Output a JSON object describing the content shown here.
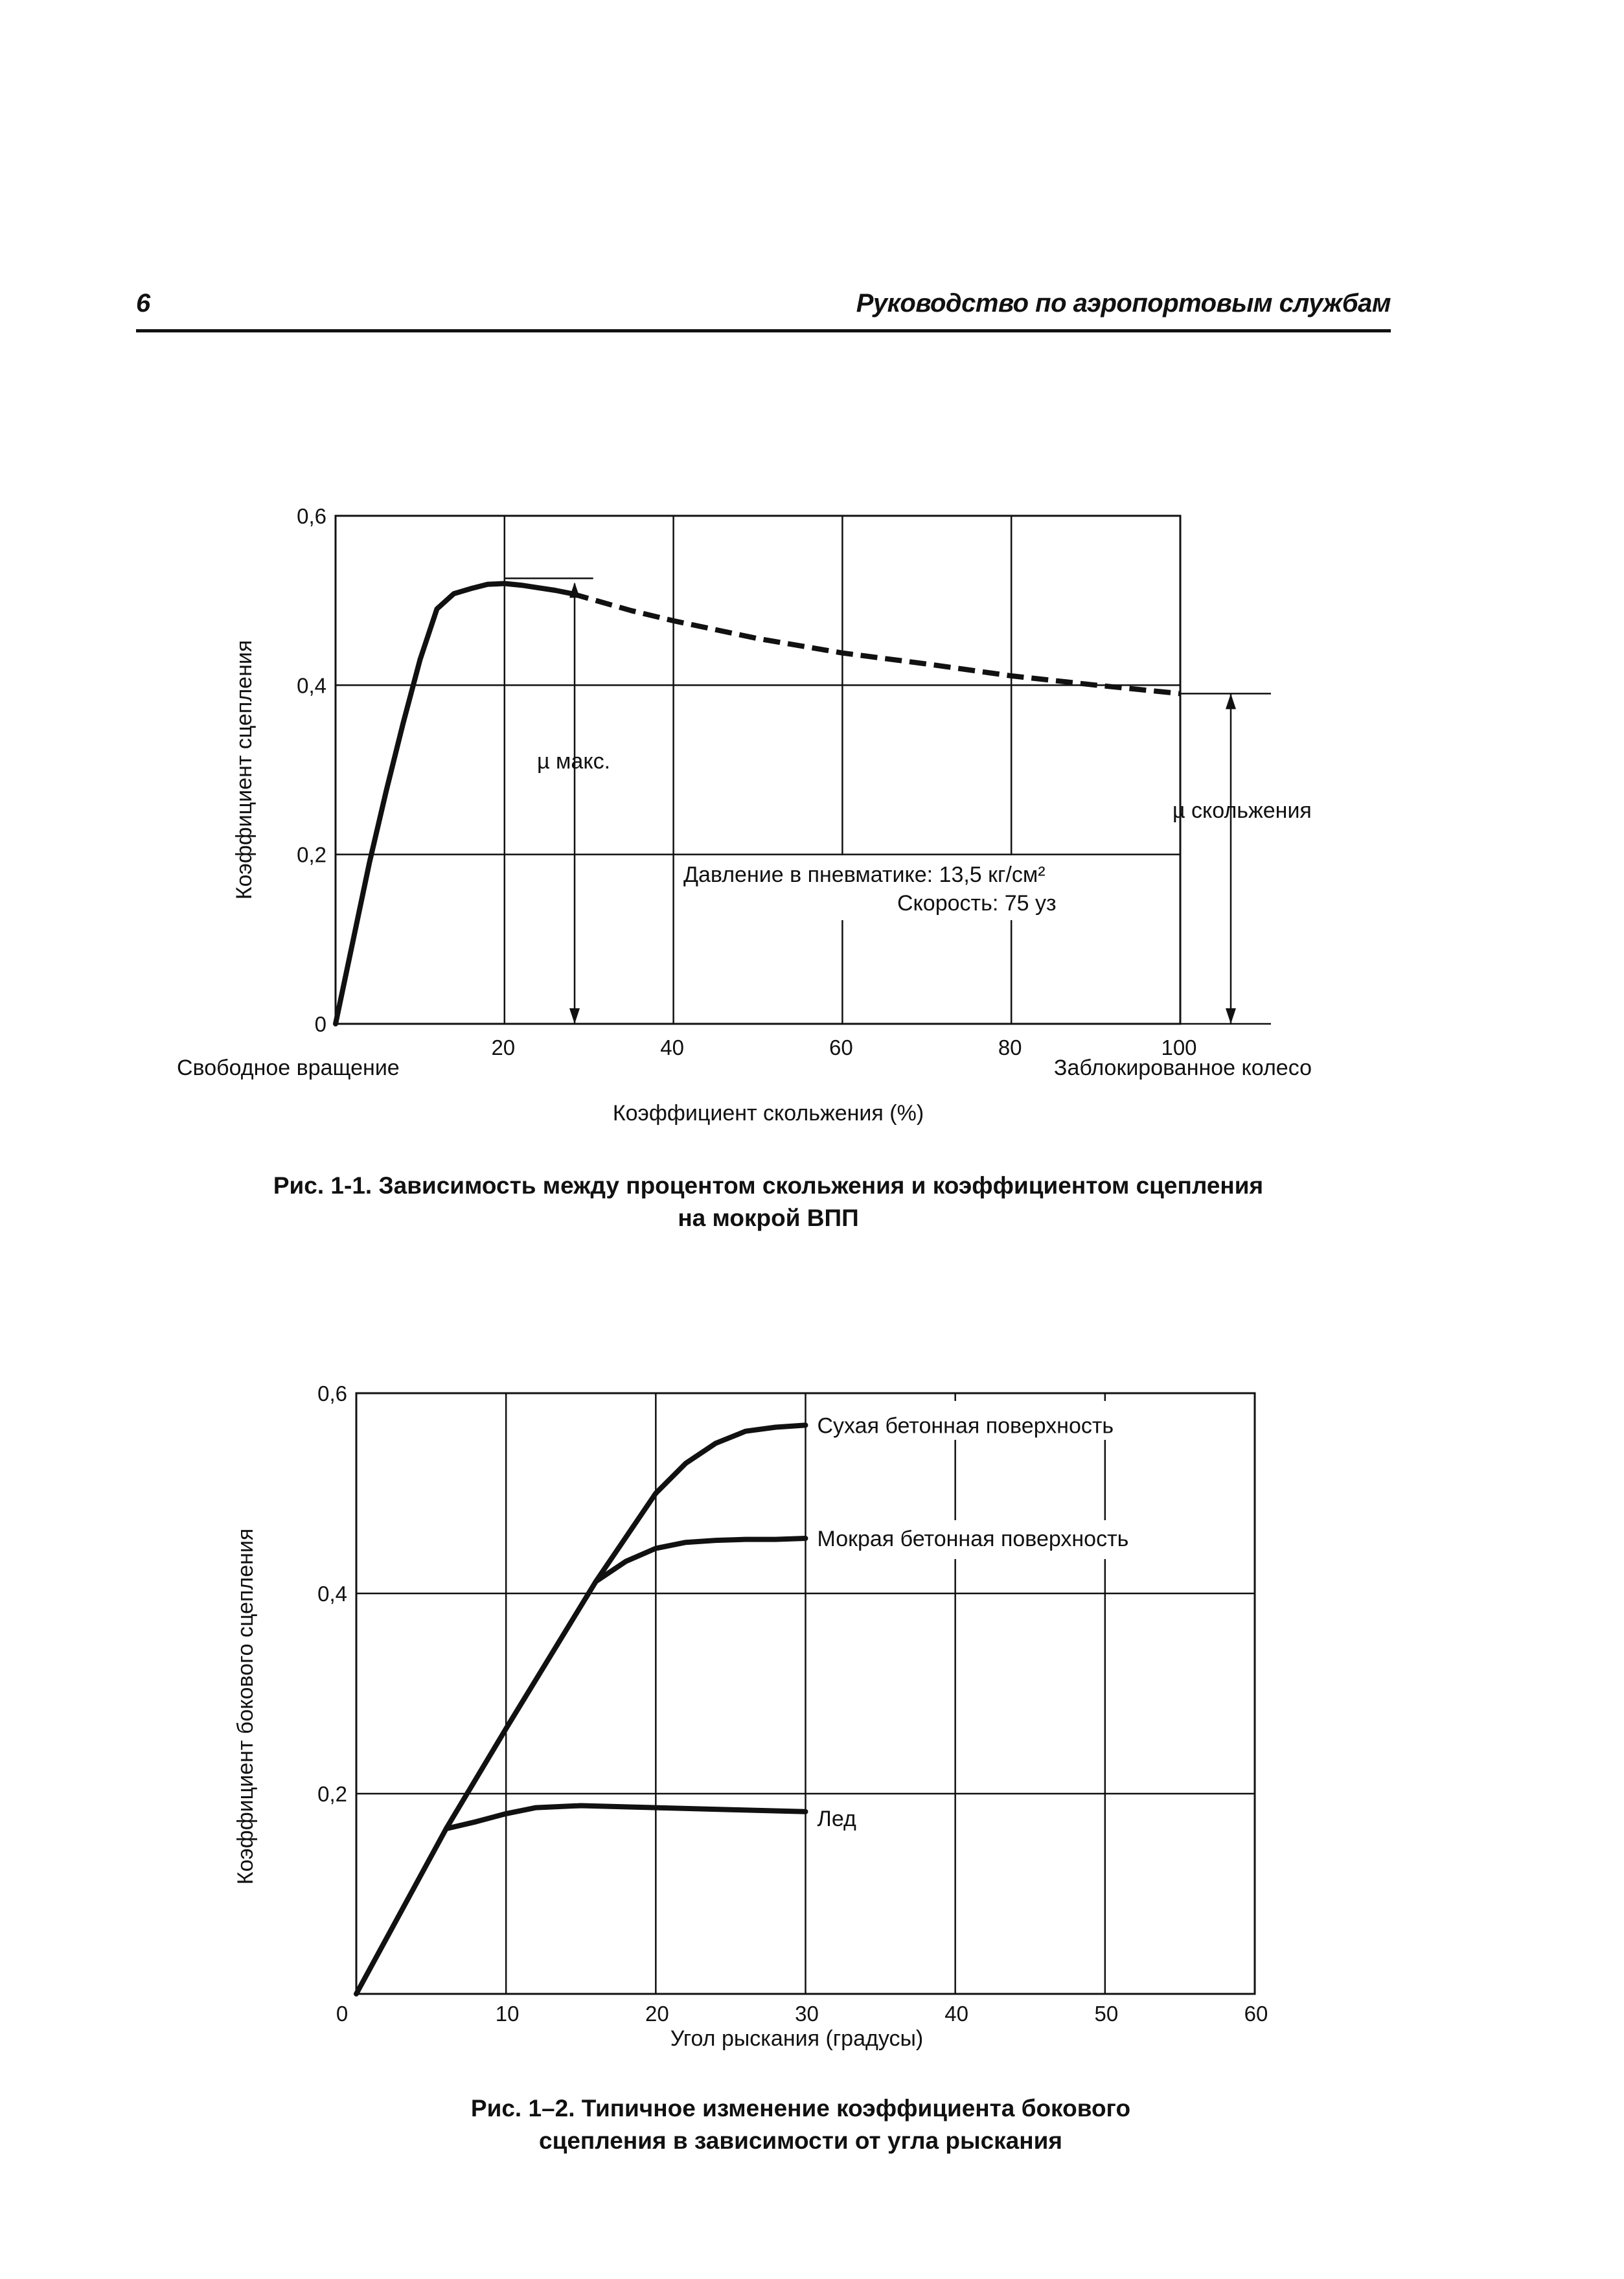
{
  "header": {
    "page_number": "6",
    "running_title": "Руководство по аэропортовым службам"
  },
  "chart_data": [
    {
      "type": "line",
      "caption_line1": "Рис. 1-1. Зависимость между процентом скольжения и коэффициентом сцепления",
      "caption_line2": "на мокрой ВПП",
      "xlabel": "Коэффициент скольжения (%)",
      "ylabel": "Коэффициент сцепления",
      "xlim": [
        0,
        100
      ],
      "ylim": [
        0,
        0.6
      ],
      "x_tick_values": [
        20,
        40,
        60,
        80,
        100
      ],
      "x_tick_labels": [
        "20",
        "40",
        "60",
        "80",
        "100"
      ],
      "y_tick_values": [
        0,
        0.2,
        0.4,
        0.6
      ],
      "y_tick_labels": [
        "0",
        "0,2",
        "0,4",
        "0,6"
      ],
      "grid": true,
      "left_end_label": "Свободное вращение",
      "right_end_label": "Заблокированное колесо",
      "annotations": {
        "mu_max": "µ макс.",
        "mu_slide": "µ скольжения",
        "pressure": "Давление в пневматике: 13,5 кг/см²",
        "speed": "Скорость: 75 уз"
      },
      "series": [
        {
          "style": "solid",
          "x": [
            0,
            2,
            4,
            6,
            8,
            10,
            12,
            14,
            16,
            18,
            20,
            22,
            24,
            26,
            28
          ],
          "y": [
            0,
            0.095,
            0.19,
            0.275,
            0.355,
            0.43,
            0.49,
            0.508,
            0.514,
            0.519,
            0.52,
            0.518,
            0.515,
            0.512,
            0.508
          ]
        },
        {
          "style": "dashed",
          "x": [
            28,
            35,
            40,
            50,
            60,
            70,
            80,
            90,
            100
          ],
          "y": [
            0.508,
            0.488,
            0.476,
            0.455,
            0.438,
            0.425,
            0.411,
            0.4,
            0.39
          ]
        }
      ],
      "mu_max_value": 0.52,
      "mu_slide_value": 0.39
    },
    {
      "type": "line",
      "caption_line1": "Рис. 1–2. Типичное изменение коэффициента бокового",
      "caption_line2": "сцепления в зависимости от угла рыскания",
      "xlabel": "Угол рыскания (градусы)",
      "ylabel": "Коэффициент бокового сцепления",
      "xlim": [
        0,
        60
      ],
      "ylim": [
        0,
        0.6
      ],
      "x_tick_values": [
        0,
        10,
        20,
        30,
        40,
        50,
        60
      ],
      "x_tick_labels": [
        "0",
        "10",
        "20",
        "30",
        "40",
        "50",
        "60"
      ],
      "y_tick_values": [
        0.2,
        0.4,
        0.6
      ],
      "y_tick_labels": [
        "0,2",
        "0,4",
        "0,6"
      ],
      "grid": true,
      "series": [
        {
          "name": "Сухая бетонная поверхность",
          "x": [
            0,
            6,
            10,
            16,
            20,
            22,
            24,
            26,
            28,
            30
          ],
          "y": [
            0,
            0.165,
            0.265,
            0.412,
            0.5,
            0.53,
            0.55,
            0.562,
            0.566,
            0.568
          ]
        },
        {
          "name": "Мокрая бетонная поверхность",
          "x": [
            16,
            18,
            20,
            22,
            24,
            26,
            28,
            30
          ],
          "y": [
            0.412,
            0.432,
            0.445,
            0.451,
            0.453,
            0.454,
            0.454,
            0.455
          ]
        },
        {
          "name": "Лед",
          "x": [
            6,
            8,
            10,
            12,
            15,
            20,
            25,
            30
          ],
          "y": [
            0.165,
            0.172,
            0.18,
            0.186,
            0.188,
            0.186,
            0.184,
            0.182
          ]
        }
      ]
    }
  ]
}
